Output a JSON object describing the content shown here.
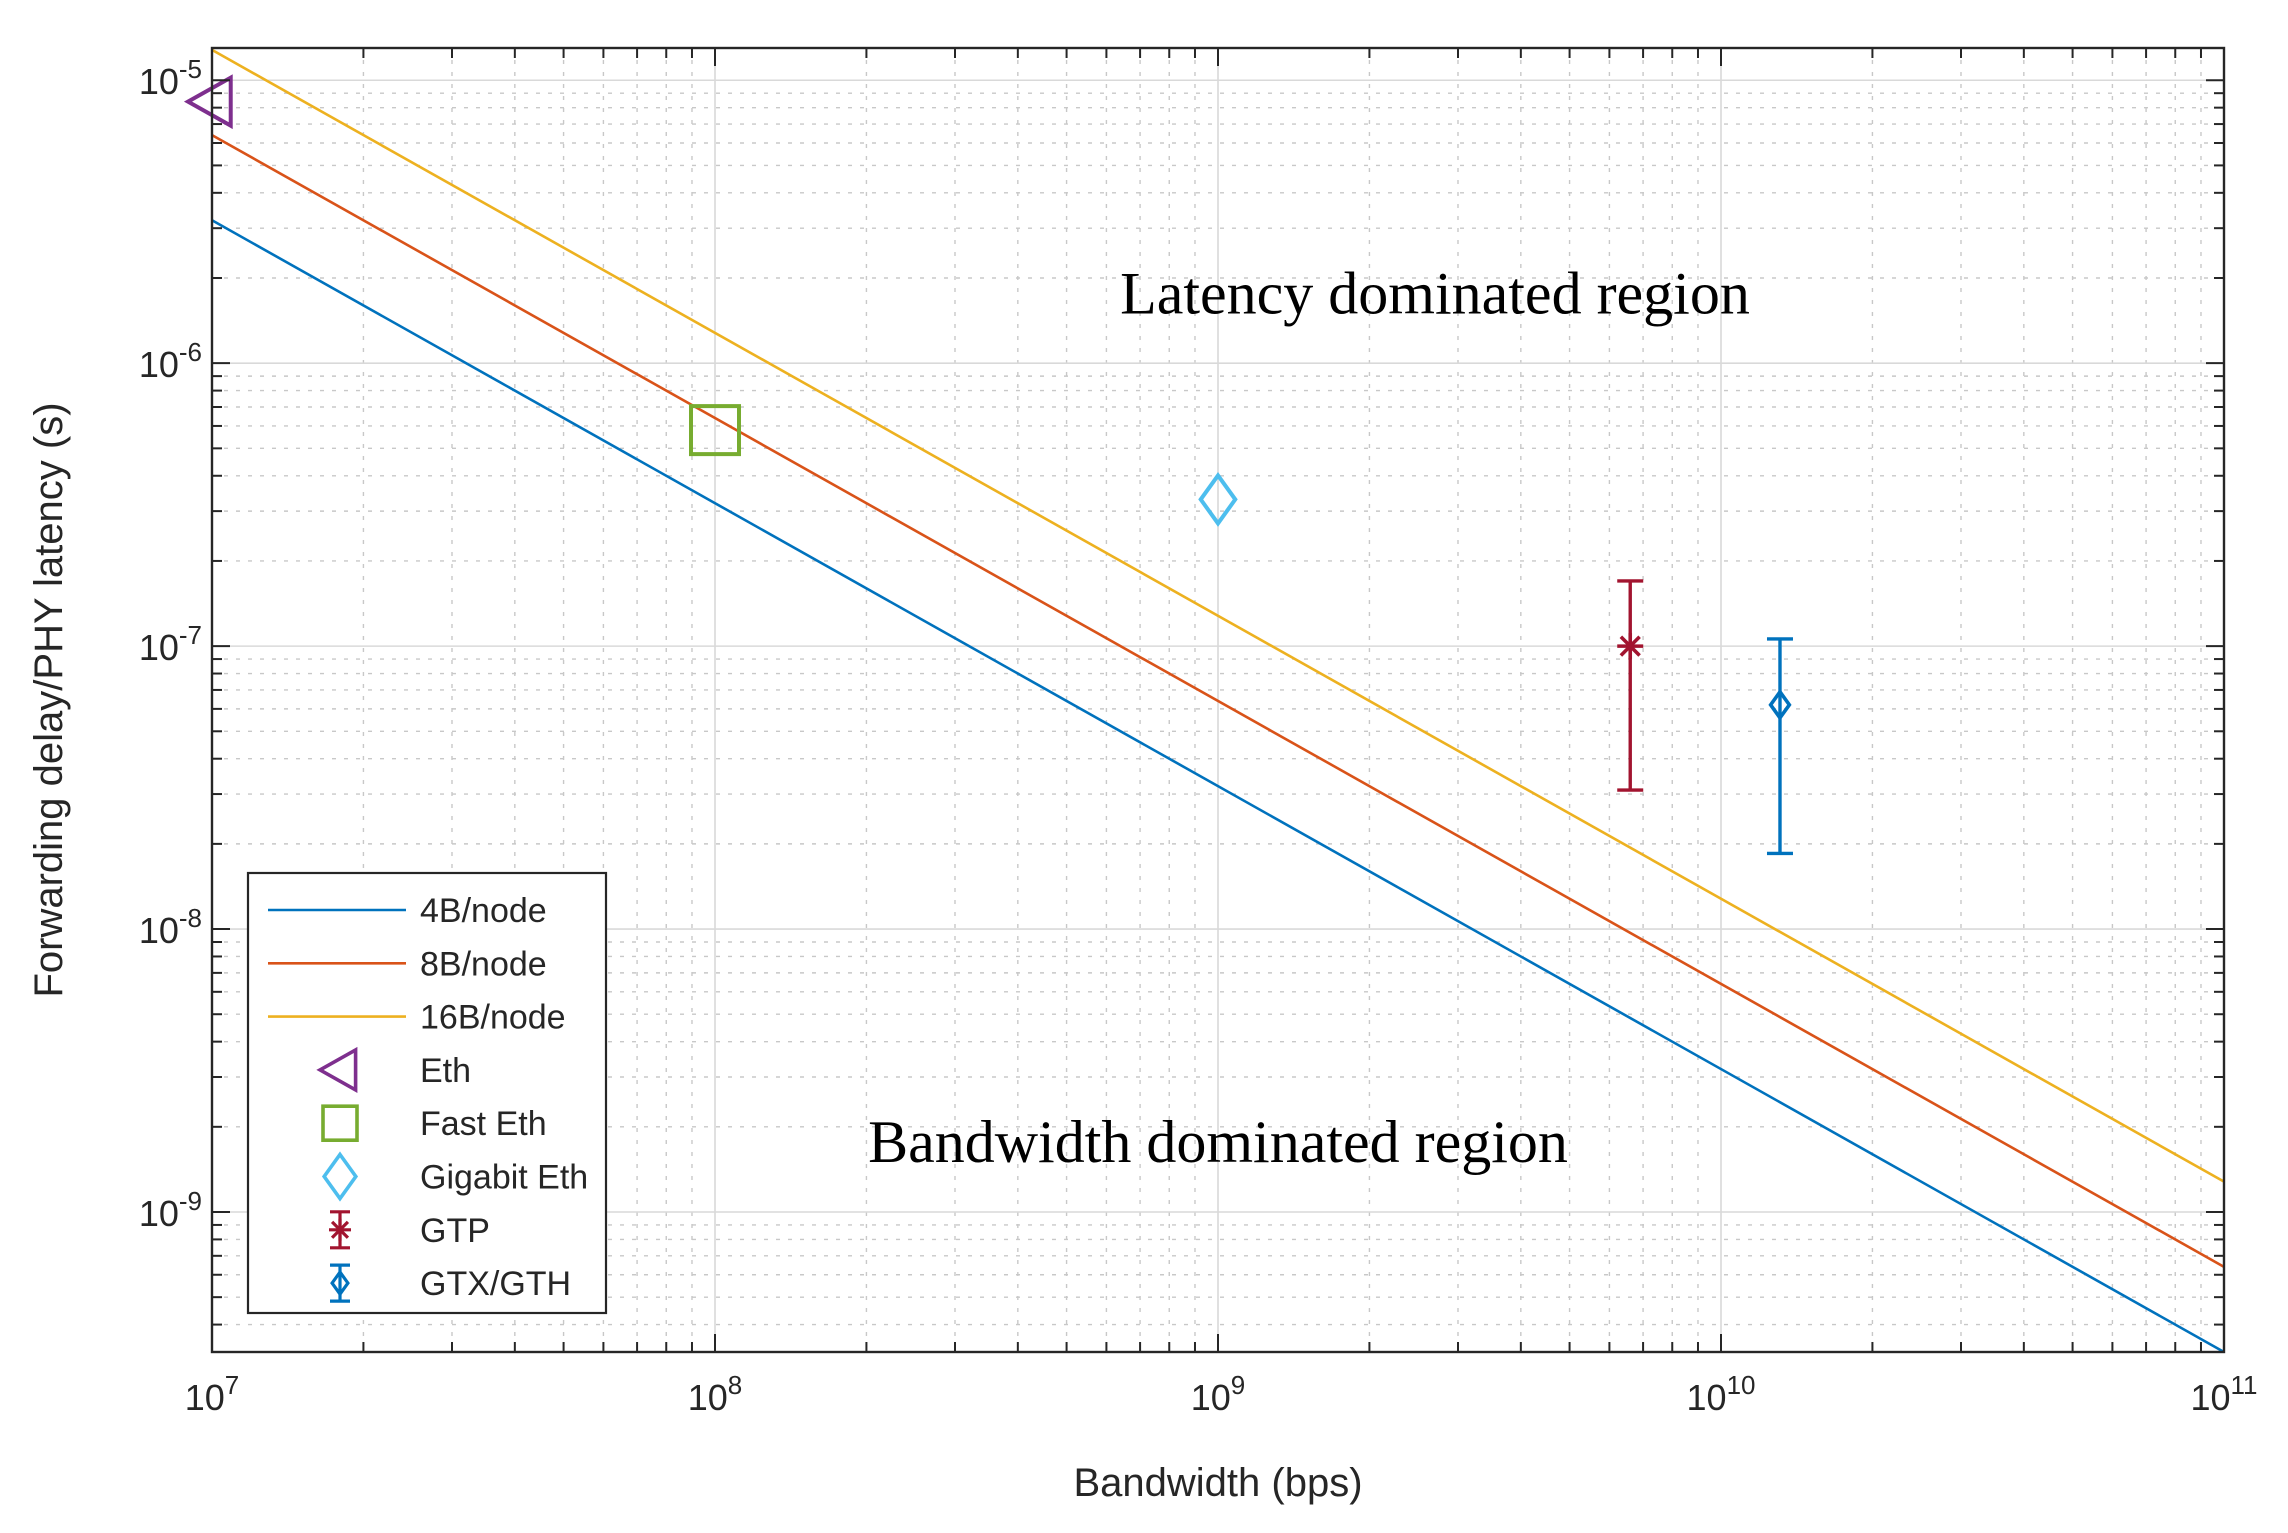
{
  "chart_data": {
    "type": "line",
    "xscale": "log",
    "yscale": "log",
    "xlim": [
      10000000,
      100000000000
    ],
    "ylim": [
      3.2e-10,
      1.3e-05
    ],
    "xlabel": "Bandwidth (bps)",
    "ylabel": "Forwarding delay/PHY latency (s)",
    "grid": true,
    "x_ticks": [
      {
        "value": 10000000,
        "base": "10",
        "exp": "7"
      },
      {
        "value": 100000000,
        "base": "10",
        "exp": "8"
      },
      {
        "value": 1000000000,
        "base": "10",
        "exp": "9"
      },
      {
        "value": 10000000000,
        "base": "10",
        "exp": "10"
      },
      {
        "value": 100000000000,
        "base": "10",
        "exp": "11"
      }
    ],
    "y_ticks": [
      {
        "value": 1e-09,
        "base": "10",
        "exp": "-9"
      },
      {
        "value": 1e-08,
        "base": "10",
        "exp": "-8"
      },
      {
        "value": 1e-07,
        "base": "10",
        "exp": "-7"
      },
      {
        "value": 1e-06,
        "base": "10",
        "exp": "-6"
      },
      {
        "value": 1e-05,
        "base": "10",
        "exp": "-5"
      }
    ],
    "lines": [
      {
        "name": "4B/node",
        "color": "#0072BD",
        "x": [
          10000000,
          100000000000
        ],
        "y": [
          3.2e-06,
          3.2e-10
        ]
      },
      {
        "name": "8B/node",
        "color": "#D95319",
        "x": [
          10000000,
          100000000000
        ],
        "y": [
          6.4e-06,
          6.4e-10
        ]
      },
      {
        "name": "16B/node",
        "color": "#EDB120",
        "x": [
          10000000,
          100000000000
        ],
        "y": [
          1.28e-05,
          1.28e-09
        ]
      }
    ],
    "markers": [
      {
        "name": "Eth",
        "marker": "triangle-left",
        "color": "#7E2F8E",
        "x": 10000000,
        "y": 8.4e-06
      },
      {
        "name": "Fast Eth",
        "marker": "square",
        "color": "#77AC30",
        "x": 100000000,
        "y": 5.8e-07
      },
      {
        "name": "Gigabit Eth",
        "marker": "diamond",
        "color": "#4DBEEE",
        "x": 1000000000,
        "y": 3.3e-07
      }
    ],
    "errorbars": [
      {
        "name": "GTP",
        "marker": "asterisk",
        "color": "#A2142F",
        "x": 6600000000,
        "y": 1e-07,
        "low": 3.1e-08,
        "high": 1.7e-07
      },
      {
        "name": "GTX/GTH",
        "marker": "diamond",
        "color": "#0072BD",
        "x": 13100000000,
        "y": 6.2e-08,
        "low": 1.85e-08,
        "high": 1.06e-07
      }
    ],
    "annotations": [
      {
        "text": "Latency dominated region",
        "x": 2700000000,
        "y": 1.5e-06
      },
      {
        "text": "Bandwidth dominated region",
        "x": 1000000000,
        "y": 1.5e-09
      }
    ],
    "legend": {
      "position": "bottom-left",
      "entries": [
        {
          "label": "4B/node",
          "kind": "line",
          "color": "#0072BD"
        },
        {
          "label": "8B/node",
          "kind": "line",
          "color": "#D95319"
        },
        {
          "label": "16B/node",
          "kind": "line",
          "color": "#EDB120"
        },
        {
          "label": "Eth",
          "kind": "triangle-left",
          "color": "#7E2F8E"
        },
        {
          "label": "Fast Eth",
          "kind": "square",
          "color": "#77AC30"
        },
        {
          "label": "Gigabit Eth",
          "kind": "diamond",
          "color": "#4DBEEE"
        },
        {
          "label": "GTP",
          "kind": "errorbar-asterisk",
          "color": "#A2142F"
        },
        {
          "label": "GTX/GTH",
          "kind": "errorbar-diamond",
          "color": "#0072BD"
        }
      ]
    }
  }
}
